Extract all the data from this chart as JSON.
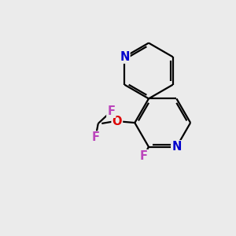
{
  "background_color": "#ebebeb",
  "bond_color": "#000000",
  "N_color": "#0000cc",
  "O_color": "#dd0000",
  "F_color": "#bb44bb",
  "figsize": [
    3.0,
    3.0
  ],
  "dpi": 100,
  "xlim": [
    0,
    10
  ],
  "ylim": [
    0,
    10
  ]
}
